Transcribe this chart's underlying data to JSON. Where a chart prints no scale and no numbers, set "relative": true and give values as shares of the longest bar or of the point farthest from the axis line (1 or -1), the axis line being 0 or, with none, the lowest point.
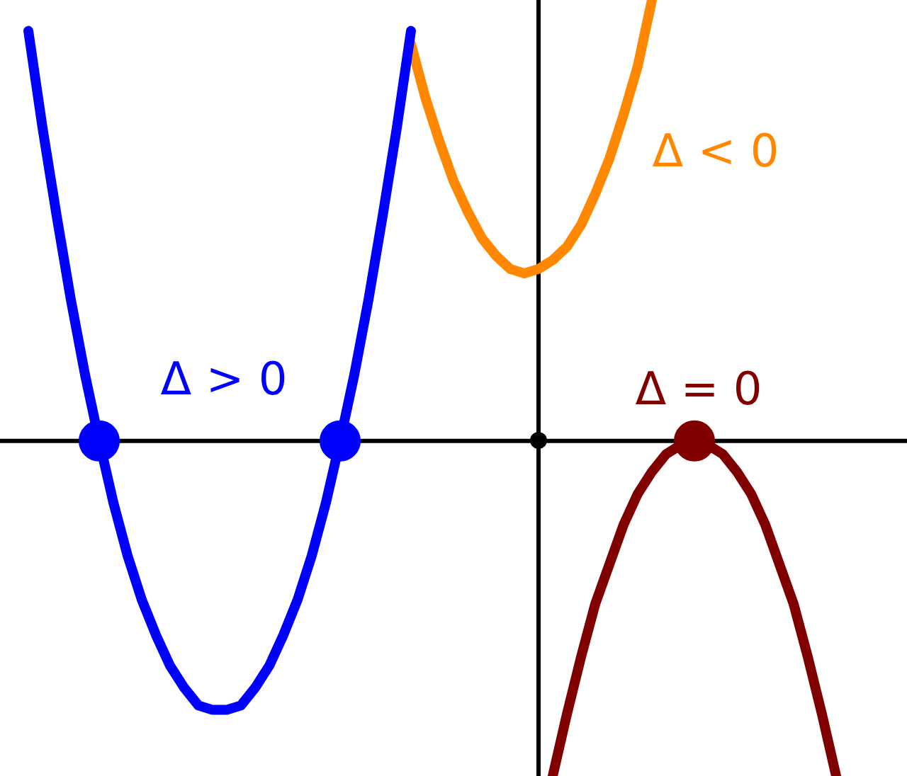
{
  "chart_data": {
    "type": "line",
    "relative": true,
    "legend": false,
    "categories": [
      null,
      null,
      null,
      null,
      null,
      null,
      null,
      null,
      null,
      null,
      null,
      null,
      null,
      null,
      null,
      null,
      null,
      null,
      null,
      null,
      null,
      null,
      null,
      null,
      null,
      null,
      null,
      null,
      null,
      null,
      null,
      null,
      null,
      null,
      null,
      null,
      null,
      null,
      null,
      null,
      null,
      null,
      null,
      null,
      null,
      null,
      null,
      null,
      null,
      null,
      null,
      null,
      null,
      null,
      null,
      null,
      null,
      null,
      null,
      null,
      null,
      null,
      null,
      null,
      null
    ],
    "series": [
      {
        "name": "Δ > 0",
        "color": "#0000ff",
        "values": [
          null,
          null,
          0.93,
          0.71,
          0.51,
          0.32,
          0.15,
          0,
          -0.14,
          -0.26,
          -0.36,
          -0.44,
          -0.51,
          -0.56,
          -0.6,
          -0.61,
          -0.61,
          -0.6,
          -0.56,
          -0.51,
          -0.44,
          -0.36,
          -0.26,
          -0.14,
          0,
          0.15,
          0.32,
          0.51,
          0.71,
          0.93,
          null,
          null,
          null,
          null,
          null,
          null,
          null,
          null,
          null,
          null,
          null,
          null,
          null,
          null,
          null,
          null,
          null,
          null,
          null,
          null,
          null,
          null,
          null,
          null,
          null,
          null,
          null,
          null,
          null,
          null,
          null,
          null,
          null,
          null,
          null
        ]
      },
      {
        "name": "Δ < 0",
        "color": "#ff8800",
        "values": [
          null,
          null,
          null,
          null,
          null,
          null,
          null,
          null,
          null,
          null,
          null,
          null,
          null,
          null,
          null,
          null,
          null,
          null,
          null,
          null,
          null,
          null,
          null,
          null,
          null,
          null,
          null,
          null,
          null,
          0.9,
          0.78,
          0.68,
          0.59,
          0.52,
          0.46,
          0.42,
          0.39,
          0.38,
          0.39,
          0.41,
          0.44,
          0.49,
          0.56,
          0.64,
          0.74,
          0.85,
          1,
          null,
          null,
          null,
          null,
          null,
          null,
          null,
          null,
          null,
          null,
          null,
          null,
          null,
          null,
          null,
          null,
          null,
          null
        ]
      },
      {
        "name": "Δ = 0",
        "color": "#800000",
        "values": [
          null,
          null,
          null,
          null,
          null,
          null,
          null,
          null,
          null,
          null,
          null,
          null,
          null,
          null,
          null,
          null,
          null,
          null,
          null,
          null,
          null,
          null,
          null,
          null,
          null,
          null,
          null,
          null,
          null,
          null,
          null,
          null,
          null,
          null,
          null,
          null,
          null,
          null,
          null,
          -0.76,
          -0.62,
          -0.49,
          -0.37,
          -0.28,
          -0.19,
          -0.12,
          -0.07,
          -0.03,
          -0.01,
          0,
          -0.01,
          -0.03,
          -0.07,
          -0.12,
          -0.19,
          -0.28,
          -0.37,
          -0.49,
          -0.62,
          -0.76,
          null,
          null,
          null,
          null,
          null
        ]
      }
    ]
  }
}
